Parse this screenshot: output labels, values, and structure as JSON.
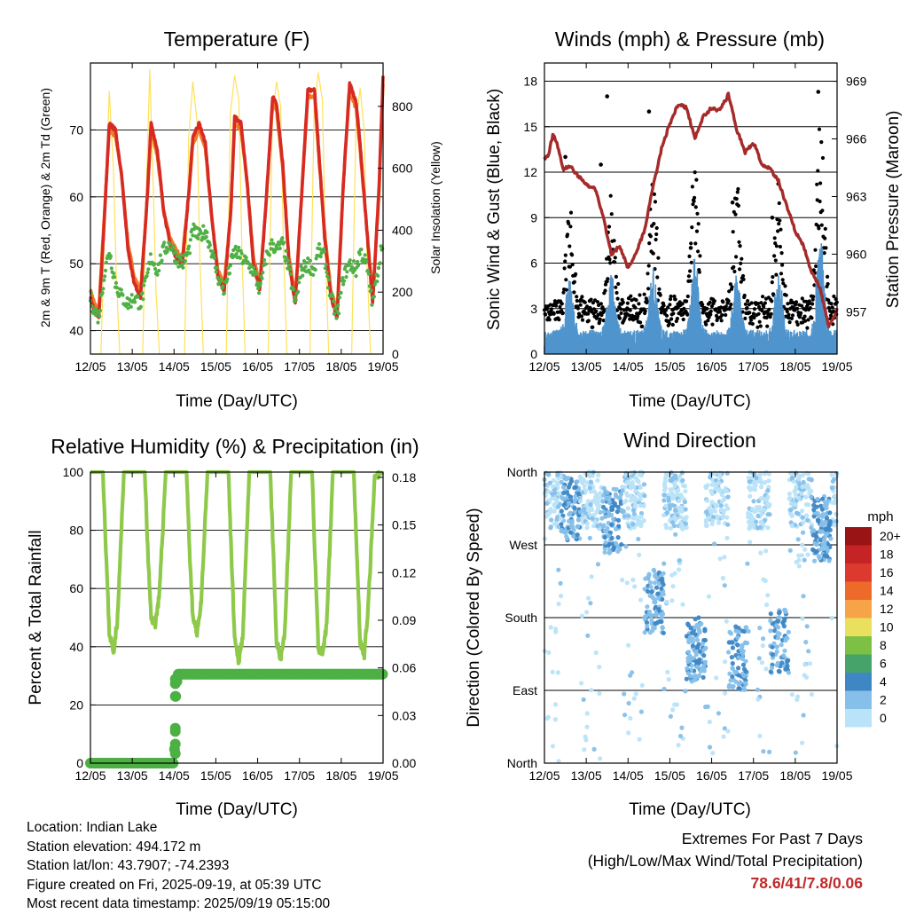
{
  "footer": {
    "location": "Location: Indian Lake",
    "elevation": "Station elevation: 494.172 m",
    "latlon": "Station lat/lon: 43.7907; -74.2393",
    "created": "Figure created on Fri, 2025-09-19, at 05:39 UTC",
    "recent": "Most recent data timestamp: 2025/09/19 05:15:00",
    "extremes_title": "Extremes For Past 7 Days",
    "extremes_subtitle": "(High/Low/Max Wind/Total Precipitation)",
    "extremes_values": "78.6/41/7.8/0.06"
  },
  "x_ticks": [
    "12/05",
    "13/05",
    "14/05",
    "15/05",
    "16/05",
    "17/05",
    "18/05",
    "19/05"
  ],
  "chart_data": [
    {
      "type": "line",
      "title": "Temperature (F)",
      "xlabel": "Time (Day/UTC)",
      "ylabel": "2m & 9m T (Red, Orange) & 2m Td (Green)",
      "y2label": "Solar Insolation (Yellow)",
      "xlim": [
        0,
        7
      ],
      "ylim": [
        36.5,
        80
      ],
      "y_ticks": [
        40,
        50,
        60,
        70
      ],
      "y2lim": [
        0,
        940
      ],
      "y2_ticks": [
        0,
        200,
        400,
        600,
        800
      ],
      "grid": true,
      "colors": {
        "t2m": "#d62a22",
        "t9m": "#f07a28",
        "td": "#4fb045",
        "solar": "#ffe15a"
      },
      "series": [
        {
          "key": "t2m",
          "x": [
            0,
            0.1,
            0.2,
            0.32,
            0.45,
            0.6,
            0.75,
            0.9,
            1.05,
            1.2,
            1.36,
            1.45,
            1.6,
            1.75,
            1.9,
            2.05,
            2.2,
            2.36,
            2.45,
            2.6,
            2.75,
            2.9,
            3.05,
            3.2,
            3.36,
            3.45,
            3.6,
            3.75,
            3.9,
            4.05,
            4.2,
            4.36,
            4.45,
            4.6,
            4.75,
            4.9,
            5.05,
            5.2,
            5.36,
            5.45,
            5.6,
            5.75,
            5.9,
            6.05,
            6.2,
            6.36,
            6.45,
            6.6,
            6.75,
            6.9,
            7.0
          ],
          "y": [
            45,
            43,
            42,
            55,
            71,
            70,
            63,
            52,
            47,
            45,
            60,
            71,
            67,
            58,
            53,
            51,
            50,
            61,
            69,
            71,
            68,
            57,
            48,
            46,
            58,
            72,
            71,
            62,
            50,
            46,
            59,
            75,
            74,
            65,
            50,
            44,
            60,
            76,
            76,
            68,
            54,
            45,
            42,
            62,
            77,
            74,
            68,
            56,
            44,
            61,
            78
          ]
        },
        {
          "key": "t9m",
          "x": [
            0,
            0.1,
            0.2,
            0.32,
            0.45,
            0.6,
            0.75,
            0.9,
            1.05,
            1.2,
            1.36,
            1.45,
            1.6,
            1.75,
            1.9,
            2.05,
            2.2,
            2.36,
            2.45,
            2.6,
            2.75,
            2.9,
            3.05,
            3.2,
            3.36,
            3.45,
            3.6,
            3.75,
            3.9,
            4.05,
            4.2,
            4.36,
            4.45,
            4.6,
            4.75,
            4.9,
            5.05,
            5.2,
            5.36,
            5.45,
            5.6,
            5.75,
            5.9,
            6.05,
            6.2,
            6.36,
            6.45,
            6.6,
            6.75,
            6.9,
            7.0
          ],
          "y": [
            46,
            44,
            43,
            56,
            70,
            69,
            63,
            53,
            48,
            46,
            60,
            70,
            66,
            58,
            54,
            52,
            51,
            61,
            68,
            70,
            67,
            57,
            49,
            47,
            58,
            71,
            70,
            62,
            51,
            47,
            59,
            74,
            73,
            64,
            51,
            45,
            60,
            75,
            75,
            67,
            55,
            46,
            43,
            62,
            76,
            73,
            67,
            56,
            45,
            60,
            77
          ]
        },
        {
          "key": "td",
          "x": [
            0,
            0.1,
            0.2,
            0.32,
            0.45,
            0.6,
            0.75,
            0.9,
            1.05,
            1.2,
            1.36,
            1.45,
            1.6,
            1.75,
            1.9,
            2.05,
            2.2,
            2.36,
            2.45,
            2.6,
            2.75,
            2.9,
            3.05,
            3.2,
            3.36,
            3.45,
            3.6,
            3.75,
            3.9,
            4.05,
            4.2,
            4.36,
            4.45,
            4.6,
            4.75,
            4.9,
            5.05,
            5.2,
            5.36,
            5.45,
            5.6,
            5.75,
            5.9,
            6.05,
            6.2,
            6.36,
            6.45,
            6.6,
            6.75,
            6.9,
            7.0
          ],
          "y": [
            45,
            43,
            42,
            48,
            52,
            47,
            45,
            44,
            45,
            44,
            48,
            51,
            49,
            52,
            53,
            51,
            50,
            52,
            55,
            54,
            55,
            52,
            48,
            46,
            50,
            52,
            51,
            50,
            49,
            46,
            51,
            53,
            52,
            53,
            49,
            44,
            49,
            50,
            49,
            52,
            51,
            45,
            42,
            48,
            50,
            49,
            52,
            50,
            44,
            50,
            54
          ]
        },
        {
          "key": "solar",
          "axis": "y2",
          "x": [
            0.25,
            0.35,
            0.45,
            0.55,
            0.62,
            0.7,
            1.25,
            1.33,
            1.42,
            1.5,
            1.57,
            1.65,
            2.25,
            2.35,
            2.45,
            2.55,
            2.62,
            2.7,
            3.25,
            3.35,
            3.45,
            3.55,
            3.62,
            3.7,
            4.25,
            4.35,
            4.45,
            4.55,
            4.62,
            4.7,
            5.25,
            5.35,
            5.45,
            5.55,
            5.62,
            5.7,
            6.25,
            6.35,
            6.45,
            6.55,
            6.62,
            6.7
          ],
          "y": [
            0,
            450,
            850,
            600,
            250,
            0,
            0,
            500,
            920,
            550,
            200,
            0,
            0,
            700,
            880,
            750,
            300,
            0,
            0,
            780,
            900,
            820,
            350,
            0,
            0,
            760,
            880,
            800,
            330,
            0,
            0,
            790,
            910,
            820,
            340,
            0,
            0,
            740,
            860,
            720,
            280,
            0
          ]
        }
      ]
    },
    {
      "type": "scatter",
      "title": "Winds (mph) & Pressure (mb)",
      "xlabel": "Time (Day/UTC)",
      "ylabel": "Sonic Wind & Gust (Blue, Black)",
      "y2label": "Station Pressure (Maroon)",
      "xlim": [
        0,
        7
      ],
      "ylim": [
        0,
        19.2
      ],
      "y_ticks": [
        0,
        3,
        6,
        9,
        12,
        15,
        18
      ],
      "y2lim": [
        954.8,
        969.95
      ],
      "y2_ticks": [
        957,
        960,
        963,
        966,
        969
      ],
      "grid": true,
      "colors": {
        "wind": "#4f94cd",
        "gust": "#000000",
        "pressure": "#a52a2a"
      },
      "series": [
        {
          "key": "pressure",
          "axis": "y2",
          "x": [
            0,
            0.1,
            0.2,
            0.3,
            0.45,
            0.6,
            0.8,
            1.0,
            1.2,
            1.4,
            1.6,
            1.8,
            2.0,
            2.2,
            2.4,
            2.6,
            2.8,
            3.0,
            3.2,
            3.4,
            3.6,
            3.8,
            4.0,
            4.2,
            4.4,
            4.6,
            4.8,
            5.0,
            5.2,
            5.4,
            5.6,
            5.8,
            6.0,
            6.2,
            6.4,
            6.6,
            6.8,
            7.0
          ],
          "y": [
            965.0,
            965.2,
            966.2,
            965.8,
            964.4,
            964.6,
            964.1,
            963.6,
            963.5,
            962.0,
            960.0,
            960.4,
            959.3,
            960.1,
            961.3,
            963.5,
            965.5,
            966.8,
            967.8,
            967.6,
            966.0,
            967.2,
            967.6,
            967.5,
            968.3,
            966.5,
            965.3,
            965.8,
            964.7,
            964.4,
            963.8,
            962.5,
            961.2,
            960.4,
            959.0,
            958.2,
            956.2,
            957.1
          ]
        },
        {
          "key": "wind_peaks",
          "x": [
            0.1,
            0.5,
            1.3,
            1.6,
            2.3,
            2.6,
            3.4,
            3.6,
            4.4,
            4.6,
            5.4,
            5.6,
            6.4,
            6.6,
            6.9
          ],
          "y": [
            1.5,
            5,
            1.8,
            5.5,
            2.2,
            5.8,
            2.5,
            6.5,
            2.4,
            5.8,
            2.6,
            5.5,
            3.5,
            8,
            2.4
          ]
        },
        {
          "key": "gust_peaks",
          "x": [
            0.5,
            1.35,
            1.5,
            2.5,
            3.5,
            4.5,
            5.45,
            6.55
          ],
          "y": [
            13,
            12.5,
            17,
            16,
            7,
            10,
            9,
            17.3
          ]
        }
      ]
    },
    {
      "type": "line",
      "title": "Relative Humidity (%) & Precipitation (in)",
      "xlabel": "Time (Day/UTC)",
      "ylabel": "Percent & Total Rainfall",
      "xlim": [
        0,
        7
      ],
      "ylim": [
        0,
        100
      ],
      "y_ticks": [
        0,
        20,
        40,
        60,
        80,
        100
      ],
      "y2lim": [
        0,
        0.1833
      ],
      "y2_ticks": [
        "0.00",
        "0.03",
        "0.06",
        "0.09",
        "0.12",
        "0.15",
        "0.18"
      ],
      "grid": true,
      "colors": {
        "rh": "#8fc94a",
        "precip": "#4cb044"
      },
      "series": [
        {
          "key": "rh",
          "x": [
            0,
            0.3,
            0.38,
            0.45,
            0.55,
            0.65,
            0.8,
            1.3,
            1.38,
            1.45,
            1.55,
            1.65,
            1.8,
            2.3,
            2.38,
            2.45,
            2.55,
            2.65,
            2.8,
            3.3,
            3.38,
            3.45,
            3.55,
            3.65,
            3.8,
            4.3,
            4.38,
            4.45,
            4.55,
            4.65,
            4.8,
            5.3,
            5.38,
            5.45,
            5.55,
            5.65,
            5.8,
            6.3,
            6.38,
            6.45,
            6.55,
            6.65,
            6.8,
            7.0
          ],
          "y": [
            100,
            100,
            70,
            45,
            38,
            50,
            100,
            100,
            70,
            50,
            48,
            58,
            100,
            100,
            70,
            50,
            45,
            55,
            100,
            100,
            68,
            42,
            35,
            45,
            100,
            100,
            70,
            42,
            36,
            45,
            100,
            100,
            68,
            40,
            36,
            48,
            100,
            100,
            70,
            42,
            37,
            55,
            98,
            100
          ]
        },
        {
          "key": "precip",
          "axis": "y2",
          "x": [
            0,
            2.0,
            2.02,
            2.04,
            2.06,
            2.1,
            7.0
          ],
          "y": [
            0,
            0,
            0.0175,
            0.042,
            0.05,
            0.056,
            0.056
          ]
        }
      ]
    },
    {
      "type": "scatter",
      "title": "Wind Direction",
      "xlabel": "Time (Day/UTC)",
      "ylabel": "Direction (Colored By Speed)",
      "xlim": [
        0,
        7
      ],
      "ylim": [
        0,
        360
      ],
      "y_ticks": [
        "North",
        "East",
        "South",
        "West",
        "North"
      ],
      "legend": {
        "unit": "mph",
        "labels": [
          "20+",
          "18",
          "16",
          "14",
          "12",
          "10",
          "8",
          "6",
          "4",
          "2",
          "0"
        ],
        "colors": [
          "#991414",
          "#c42426",
          "#dc3a2e",
          "#ee6a2b",
          "#f6a447",
          "#e9e05e",
          "#7cc144",
          "#46a46a",
          "#3e87c4",
          "#86c0ea",
          "#b9e3f8"
        ]
      },
      "series": [
        {
          "key": "direction_clusters_deg",
          "x": [
            0.5,
            1.5,
            2.5,
            3.5,
            4.5,
            5.5,
            6.5
          ],
          "y": [
            315,
            300,
            200,
            140,
            130,
            150,
            290
          ]
        }
      ]
    }
  ]
}
